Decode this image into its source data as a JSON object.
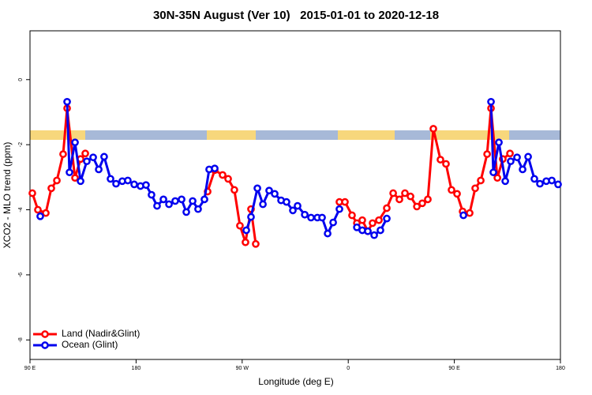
{
  "chart_data": {
    "type": "line",
    "title": "30N-35N August (Ver 10)   2015-01-01 to 2020-12-18",
    "x_label": "Longitude (deg E)",
    "y_label": "XCO2 - MLO trend (ppm)",
    "xlim": [
      90,
      540
    ],
    "xticks": [
      {
        "value": 90,
        "label": "90 E"
      },
      {
        "value": 180,
        "label": "180"
      },
      {
        "value": 270,
        "label": "90 W"
      },
      {
        "value": 360,
        "label": "0"
      },
      {
        "value": 450,
        "label": "90 E"
      },
      {
        "value": 540,
        "label": "180"
      }
    ],
    "ylim": [
      -8.6,
      1.5
    ],
    "yticks": [
      0,
      -2,
      -4,
      -6,
      -8
    ],
    "legend": "bottom-left",
    "series": [
      {
        "name": "Land (Nadir&Glint)",
        "color": "#ff0000",
        "x": [
          92.0,
          96.7,
          103.4,
          108.1,
          112.8,
          118.1,
          121.5,
          128.2,
          132.9,
          136.9,
          null,
          240.7,
          246.7,
          253.4,
          258.1,
          263.4,
          268.1,
          272.8,
          277.5,
          281.5,
          null,
          352.5,
          357.2,
          363.2,
          367.3,
          371.9,
          376.6,
          380.6,
          386.0,
          392.7,
          398.1,
          403.4,
          408.1,
          412.8,
          418.2,
          422.8,
          427.5,
          432.2,
          438.2,
          442.9,
          447.6,
          452.3,
          457.0,
          463.0,
          467.7,
          472.4,
          477.8,
          481.1,
          486.5,
          491.1,
          497.2
        ],
        "values": [
          -3.49,
          -4.0,
          -4.1,
          -3.34,
          -3.1,
          -2.29,
          -0.88,
          -3.02,
          -2.44,
          -2.27,
          null,
          -3.44,
          -2.78,
          -2.93,
          -3.05,
          -3.39,
          -4.49,
          -5.0,
          -3.98,
          -5.05,
          null,
          -3.76,
          -3.76,
          -4.17,
          -4.41,
          -4.32,
          -4.66,
          -4.41,
          -4.32,
          -3.95,
          -3.49,
          -3.68,
          -3.49,
          -3.59,
          -3.9,
          -3.8,
          -3.68,
          -1.51,
          -2.46,
          -2.59,
          -3.39,
          -3.51,
          -4.05,
          -4.1,
          -3.34,
          -3.1,
          -2.29,
          -0.88,
          -3.02,
          -2.44,
          -2.27
        ]
      },
      {
        "name": "Ocean (Glint)",
        "color": "#0000ee",
        "x": [
          98.7,
          null,
          121.5,
          123.5,
          128.2,
          132.9,
          138.2,
          143.6,
          148.3,
          152.9,
          158.3,
          163.0,
          168.3,
          173.0,
          178.4,
          183.7,
          188.4,
          193.1,
          197.8,
          203.2,
          207.9,
          213.2,
          218.6,
          222.6,
          228.0,
          232.6,
          238.0,
          242.0,
          246.7,
          null,
          273.5,
          277.5,
          282.9,
          287.6,
          292.9,
          297.6,
          303.0,
          307.6,
          313.0,
          317.0,
          323.1,
          328.4,
          333.8,
          337.8,
          342.5,
          347.2,
          352.5,
          null,
          367.3,
          371.9,
          376.6,
          382.0,
          387.3,
          392.7,
          null,
          457.7,
          null,
          481.1,
          483.1,
          487.8,
          493.2,
          497.8,
          503.2,
          507.9,
          512.6,
          517.9,
          522.6,
          528.0,
          532.7,
          538.0
        ],
        "values": [
          -4.2,
          null,
          -0.68,
          -2.85,
          -1.93,
          -3.12,
          -2.51,
          -2.39,
          -2.76,
          -2.37,
          -3.05,
          -3.2,
          -3.12,
          -3.1,
          -3.22,
          -3.27,
          -3.24,
          -3.54,
          -3.88,
          -3.68,
          -3.83,
          -3.73,
          -3.68,
          -4.07,
          -3.73,
          -3.98,
          -3.68,
          -2.76,
          -2.73,
          null,
          -4.63,
          -4.22,
          -3.34,
          -3.83,
          -3.41,
          -3.51,
          -3.71,
          -3.76,
          -4.02,
          -3.88,
          -4.15,
          -4.24,
          -4.24,
          -4.24,
          -4.73,
          -4.39,
          -3.98,
          null,
          -4.54,
          -4.63,
          -4.66,
          -4.78,
          -4.63,
          -4.27,
          null,
          -4.17,
          null,
          -0.68,
          -2.85,
          -1.93,
          -3.12,
          -2.51,
          -2.39,
          -2.76,
          -2.37,
          -3.05,
          -3.2,
          -3.12,
          -3.1,
          -3.22
        ]
      }
    ]
  }
}
